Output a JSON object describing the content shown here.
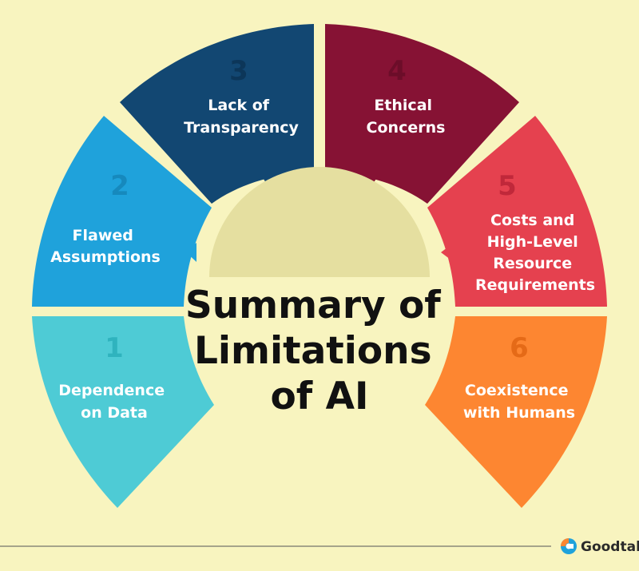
{
  "title_lines": [
    "Summary of",
    "Limitations",
    "of AI"
  ],
  "colors": {
    "background": "#f8f4bf",
    "center_dome": "#e5dfa0",
    "line": "#555555"
  },
  "segments": [
    {
      "number": "1",
      "label_lines": [
        "Dependence",
        "on Data"
      ],
      "color": "#4ecbd5",
      "number_color": "#2fb3be"
    },
    {
      "number": "2",
      "label_lines": [
        "Flawed",
        "Assumptions"
      ],
      "color": "#1fa2db",
      "number_color": "#1689bd"
    },
    {
      "number": "3",
      "label_lines": [
        "Lack of",
        "Transparency"
      ],
      "color": "#124772",
      "number_color": "#0c3659"
    },
    {
      "number": "4",
      "label_lines": [
        "Ethical",
        "Concerns"
      ],
      "color": "#861234",
      "number_color": "#6c0d29"
    },
    {
      "number": "5",
      "label_lines": [
        "Costs and",
        "High-Level",
        "Resource",
        "Requirements"
      ],
      "color": "#e5414f",
      "number_color": "#c0283a"
    },
    {
      "number": "6",
      "label_lines": [
        "Coexistence",
        "with Humans"
      ],
      "color": "#fd8631",
      "number_color": "#e56a17"
    }
  ],
  "brand": {
    "name": "Goodtal",
    "icon": "goodtal-logo-icon"
  }
}
